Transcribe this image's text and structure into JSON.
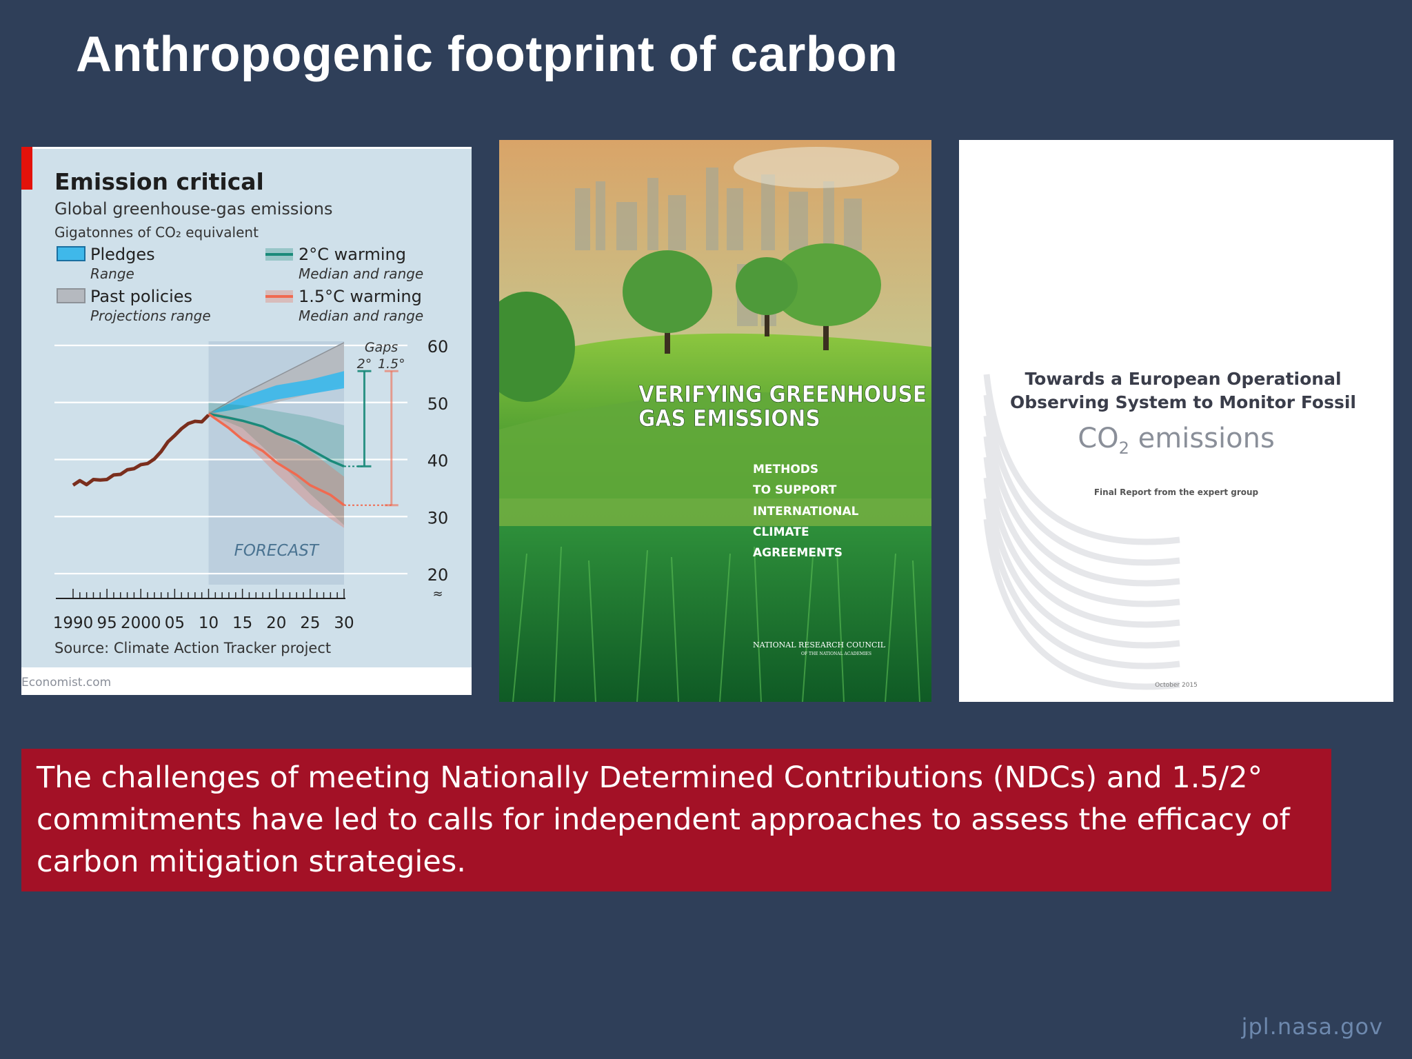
{
  "slide": {
    "title": "Anthropogenic footprint of carbon",
    "callout": "The challenges of meeting  Nationally Determined Contributions (NDCs)  and 1.5/2° commitments have led to calls for independent approaches  to assess the efficacy of carbon mitigation strategies.",
    "footer": "jpl.nasa.gov"
  },
  "colors": {
    "background": "#2f3f59",
    "callout": "#a31126",
    "chart_bg": "#cfe0ea",
    "history": "#7a2e1d",
    "pledges": "#3fb8ea",
    "past_policies": "#b5b9bf",
    "warming_2c": "#1a8a7a",
    "warming_15c": "#f06a50",
    "accent_red": "#e3120b"
  },
  "chart_data": {
    "type": "line",
    "title": "Emission critical",
    "subtitle": "Global greenhouse-gas emissions",
    "ylabel": "Gigatonnes of CO₂ equivalent",
    "source": "Source: Climate Action Tracker project",
    "credit": "Economist.com",
    "forecast_label": "FORECAST",
    "forecast_range": [
      2010,
      2030
    ],
    "xlim": [
      1990,
      2030
    ],
    "ylim": [
      20,
      60
    ],
    "x_ticks": [
      1990,
      1995,
      2000,
      2005,
      2010,
      2015,
      2020,
      2025,
      2030
    ],
    "x_tick_labels": [
      "1990",
      "95",
      "2000",
      "05",
      "10",
      "15",
      "20",
      "25",
      "30"
    ],
    "y_ticks": [
      20,
      30,
      40,
      50,
      60
    ],
    "y_tick_labels": [
      "20",
      "30",
      "40",
      "50",
      "60"
    ],
    "legend": [
      {
        "key": "pledges",
        "label": "Pledges",
        "sublabel": "Range",
        "swatch": "band"
      },
      {
        "key": "warming_2c",
        "label": "2°C warming",
        "sublabel": "Median and range",
        "swatch": "line-band"
      },
      {
        "key": "past_policies",
        "label": "Past policies",
        "sublabel": "Projections range",
        "swatch": "band"
      },
      {
        "key": "warming_15c",
        "label": "1.5°C warming",
        "sublabel": "Median and range",
        "swatch": "line-band"
      }
    ],
    "gaps": {
      "label": "Gaps",
      "labels": [
        "2°",
        "1.5°"
      ]
    },
    "series": [
      {
        "key": "history",
        "x": [
          1990,
          1991,
          1992,
          1993,
          1994,
          1995,
          1996,
          1997,
          1998,
          1999,
          2000,
          2001,
          2002,
          2003,
          2004,
          2005,
          2006,
          2007,
          2008,
          2009,
          2010
        ],
        "values": [
          35.5,
          36.3,
          35.6,
          36.5,
          36.4,
          36.5,
          37.3,
          37.4,
          38.2,
          38.4,
          39.1,
          39.3,
          40.1,
          41.4,
          43.1,
          44.2,
          45.4,
          46.3,
          46.7,
          46.6,
          47.8
        ]
      },
      {
        "key": "pledges_upper",
        "x": [
          2010,
          2015,
          2020,
          2025,
          2030
        ],
        "values": [
          48,
          51,
          53,
          54,
          55.5
        ]
      },
      {
        "key": "pledges_lower",
        "x": [
          2010,
          2015,
          2020,
          2025,
          2030
        ],
        "values": [
          48,
          49,
          50.5,
          51.5,
          52.5
        ]
      },
      {
        "key": "past_policies_upper",
        "x": [
          2010,
          2015,
          2020,
          2025,
          2030
        ],
        "values": [
          48,
          51.5,
          54.5,
          57.5,
          60.5
        ]
      },
      {
        "key": "past_policies_lower",
        "x": [
          2010,
          2015,
          2020,
          2025,
          2030
        ],
        "values": [
          48,
          49,
          50,
          51.5,
          53
        ]
      },
      {
        "key": "warming_2c_median",
        "x": [
          2010,
          2013,
          2015,
          2018,
          2020,
          2023,
          2025,
          2028,
          2030
        ],
        "values": [
          48,
          47.3,
          46.8,
          45.8,
          44.6,
          43.2,
          41.8,
          39.8,
          38.8
        ]
      },
      {
        "key": "warming_2c_upper",
        "x": [
          2010,
          2015,
          2020,
          2025,
          2030
        ],
        "values": [
          50,
          49.5,
          48.5,
          47.5,
          46
        ]
      },
      {
        "key": "warming_2c_lower",
        "x": [
          2010,
          2015,
          2020,
          2025,
          2030
        ],
        "values": [
          48,
          45.5,
          40,
          34,
          28.5
        ]
      },
      {
        "key": "warming_15c_median",
        "x": [
          2010,
          2013,
          2015,
          2018,
          2020,
          2023,
          2025,
          2028,
          2030
        ],
        "values": [
          48,
          45.5,
          43.5,
          41.5,
          39.5,
          37.3,
          35.5,
          33.8,
          32
        ]
      },
      {
        "key": "warming_15c_upper",
        "x": [
          2010,
          2015,
          2020,
          2025,
          2030
        ],
        "values": [
          48.5,
          47,
          44.5,
          41.5,
          37
        ]
      },
      {
        "key": "warming_15c_lower",
        "x": [
          2010,
          2015,
          2020,
          2025,
          2030
        ],
        "values": [
          48,
          43.5,
          37.5,
          32,
          28
        ]
      }
    ],
    "gap_lines": [
      {
        "key": "gap_2c",
        "x": 2033,
        "from": 38.8,
        "to": 55.5
      },
      {
        "key": "gap_15c",
        "x": 2037,
        "from": 32,
        "to": 55.5
      }
    ]
  },
  "covers": {
    "nrc": {
      "title_line1": "VERIFYING GREENHOUSE",
      "title_line2": "GAS EMISSIONS",
      "subtitle_lines": [
        "METHODS",
        "TO SUPPORT",
        "INTERNATIONAL",
        "CLIMATE",
        "AGREEMENTS"
      ],
      "publisher": "NATIONAL RESEARCH COUNCIL",
      "publisher_sub": "OF THE NATIONAL ACADEMIES"
    },
    "eu": {
      "title_line1": "Towards a European Operational",
      "title_line2": "Observing System to Monitor Fossil",
      "co2_prefix": "CO",
      "co2_sub": "2",
      "co2_suffix": " emissions",
      "subtitle": "Final Report from the expert group",
      "date": "October 2015"
    }
  }
}
